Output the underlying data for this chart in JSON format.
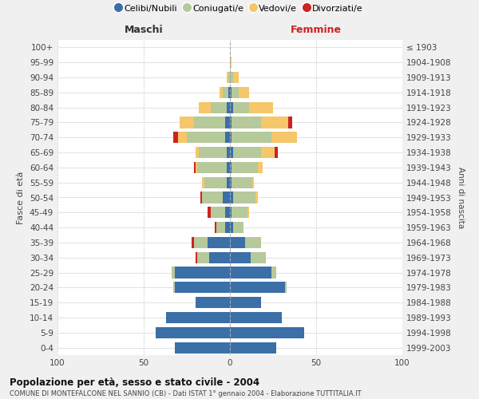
{
  "age_groups": [
    "0-4",
    "5-9",
    "10-14",
    "15-19",
    "20-24",
    "25-29",
    "30-34",
    "35-39",
    "40-44",
    "45-49",
    "50-54",
    "55-59",
    "60-64",
    "65-69",
    "70-74",
    "75-79",
    "80-84",
    "85-89",
    "90-94",
    "95-99",
    "100+"
  ],
  "birth_years": [
    "1999-2003",
    "1994-1998",
    "1989-1993",
    "1984-1988",
    "1979-1983",
    "1974-1978",
    "1969-1973",
    "1964-1968",
    "1959-1963",
    "1954-1958",
    "1949-1953",
    "1944-1948",
    "1939-1943",
    "1934-1938",
    "1929-1933",
    "1924-1928",
    "1919-1923",
    "1914-1918",
    "1909-1913",
    "1904-1908",
    "≤ 1903"
  ],
  "maschi": {
    "celibi": [
      32,
      43,
      37,
      20,
      32,
      32,
      12,
      13,
      3,
      3,
      4,
      2,
      2,
      2,
      3,
      3,
      2,
      1,
      0,
      0,
      0
    ],
    "coniugati": [
      0,
      0,
      0,
      0,
      1,
      2,
      7,
      8,
      5,
      8,
      12,
      13,
      17,
      16,
      22,
      18,
      9,
      3,
      1,
      0,
      0
    ],
    "vedovi": [
      0,
      0,
      0,
      0,
      0,
      0,
      0,
      0,
      0,
      0,
      0,
      1,
      1,
      2,
      5,
      8,
      7,
      2,
      1,
      0,
      0
    ],
    "divorziati": [
      0,
      0,
      0,
      0,
      0,
      0,
      1,
      1,
      1,
      2,
      1,
      0,
      1,
      0,
      3,
      0,
      0,
      0,
      0,
      0,
      0
    ]
  },
  "femmine": {
    "nubili": [
      27,
      43,
      30,
      18,
      32,
      24,
      12,
      9,
      2,
      1,
      2,
      1,
      1,
      2,
      1,
      1,
      2,
      1,
      0,
      0,
      0
    ],
    "coniugate": [
      0,
      0,
      0,
      0,
      1,
      3,
      9,
      9,
      6,
      9,
      13,
      12,
      15,
      16,
      23,
      17,
      9,
      4,
      2,
      0,
      0
    ],
    "vedove": [
      0,
      0,
      0,
      0,
      0,
      0,
      0,
      0,
      0,
      1,
      1,
      1,
      3,
      8,
      15,
      16,
      14,
      6,
      3,
      1,
      0
    ],
    "divorziate": [
      0,
      0,
      0,
      0,
      0,
      0,
      0,
      0,
      0,
      0,
      0,
      0,
      0,
      2,
      0,
      2,
      0,
      0,
      0,
      0,
      0
    ]
  },
  "colors": {
    "celibi": "#3a6fa8",
    "coniugati": "#b5c99a",
    "vedovi": "#f5c76a",
    "divorziati": "#cc2222"
  },
  "xlim": 100,
  "title": "Popolazione per età, sesso e stato civile - 2004",
  "subtitle": "COMUNE DI MONTEFALCONE NEL SANNIO (CB) - Dati ISTAT 1° gennaio 2004 - Elaborazione TUTTITALIA.IT",
  "xlabel_left": "Maschi",
  "xlabel_right": "Femmine",
  "ylabel_left": "Fasce di età",
  "ylabel_right": "Anni di nascita",
  "legend_labels": [
    "Celibi/Nubili",
    "Coniugati/e",
    "Vedovi/e",
    "Divorziati/e"
  ],
  "bg_color": "#f0f0f0",
  "plot_bg": "#ffffff"
}
